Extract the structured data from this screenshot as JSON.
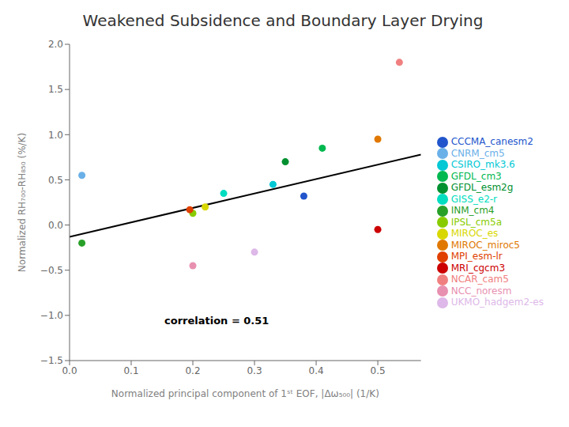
{
  "chart_data": {
    "type": "scatter",
    "title": "Weakened Subsidence and Boundary Layer Drying",
    "xlabel": "Normalized principal component of 1ˢᵗ EOF, |Δω₅₀₀| (1/K)",
    "ylabel": "Normalized RH₇₀₀-RH₈₅₀ (%/K)",
    "annotation": "correlation = 0.51",
    "xlim": [
      0.0,
      0.57
    ],
    "ylim": [
      -1.5,
      2.0
    ],
    "xticks": [
      {
        "value": 0.0,
        "label": "0.0"
      },
      {
        "value": 0.1,
        "label": "0.1"
      },
      {
        "value": 0.2,
        "label": "0.2"
      },
      {
        "value": 0.3,
        "label": "0.3"
      },
      {
        "value": 0.4,
        "label": "0.4"
      },
      {
        "value": 0.5,
        "label": "0.5"
      }
    ],
    "yticks": [
      {
        "value": -1.5,
        "label": "−1.5"
      },
      {
        "value": -1.0,
        "label": "−1.0"
      },
      {
        "value": -0.5,
        "label": "−0.5"
      },
      {
        "value": 0.0,
        "label": "0.0"
      },
      {
        "value": 0.5,
        "label": "0.5"
      },
      {
        "value": 1.0,
        "label": "1.0"
      },
      {
        "value": 1.5,
        "label": "1.5"
      },
      {
        "value": 2.0,
        "label": "2.0"
      }
    ],
    "fit_line": {
      "x": [
        0.0,
        0.57
      ],
      "y": [
        -0.13,
        0.78
      ],
      "color": "#000000"
    },
    "grid": false,
    "legend": "right",
    "series": [
      {
        "name": "CCCMA_canesm2",
        "x": 0.38,
        "y": 0.32,
        "color": "#2255cc"
      },
      {
        "name": "CNRM_cm5",
        "x": 0.02,
        "y": 0.55,
        "color": "#6ab0e8"
      },
      {
        "name": "CSIRO_mk3.6",
        "x": 0.33,
        "y": 0.45,
        "color": "#00c8d4"
      },
      {
        "name": "GISS_e2-r",
        "x": 0.25,
        "y": 0.35,
        "color": "#00ddc0"
      },
      {
        "name": "GFDL_cm3",
        "x": 0.41,
        "y": 0.85,
        "color": "#00b850"
      },
      {
        "name": "GFDL_esm2g",
        "x": 0.35,
        "y": 0.7,
        "color": "#009030"
      },
      {
        "name": "INM_cm4",
        "x": 0.02,
        "y": -0.2,
        "color": "#28a028"
      },
      {
        "name": "IPSL_cm5a",
        "x": 0.2,
        "y": 0.13,
        "color": "#88cc00"
      },
      {
        "name": "MIROC_es",
        "x": 0.22,
        "y": 0.2,
        "color": "#d8d800"
      },
      {
        "name": "MIROC_miroc5",
        "x": 0.5,
        "y": 0.95,
        "color": "#e07800"
      },
      {
        "name": "MPI_esm-lr",
        "x": 0.195,
        "y": 0.17,
        "color": "#e04000"
      },
      {
        "name": "MRI_cgcm3",
        "x": 0.5,
        "y": -0.05,
        "color": "#cc0000"
      },
      {
        "name": "NCAR_cam5",
        "x": 0.535,
        "y": 1.8,
        "color": "#f08080"
      },
      {
        "name": "NCC_noresm",
        "x": 0.2,
        "y": -0.45,
        "color": "#e890b0"
      },
      {
        "name": "UKMO_hadgem2-es",
        "x": 0.3,
        "y": -0.3,
        "color": "#ddb8e8"
      }
    ]
  }
}
